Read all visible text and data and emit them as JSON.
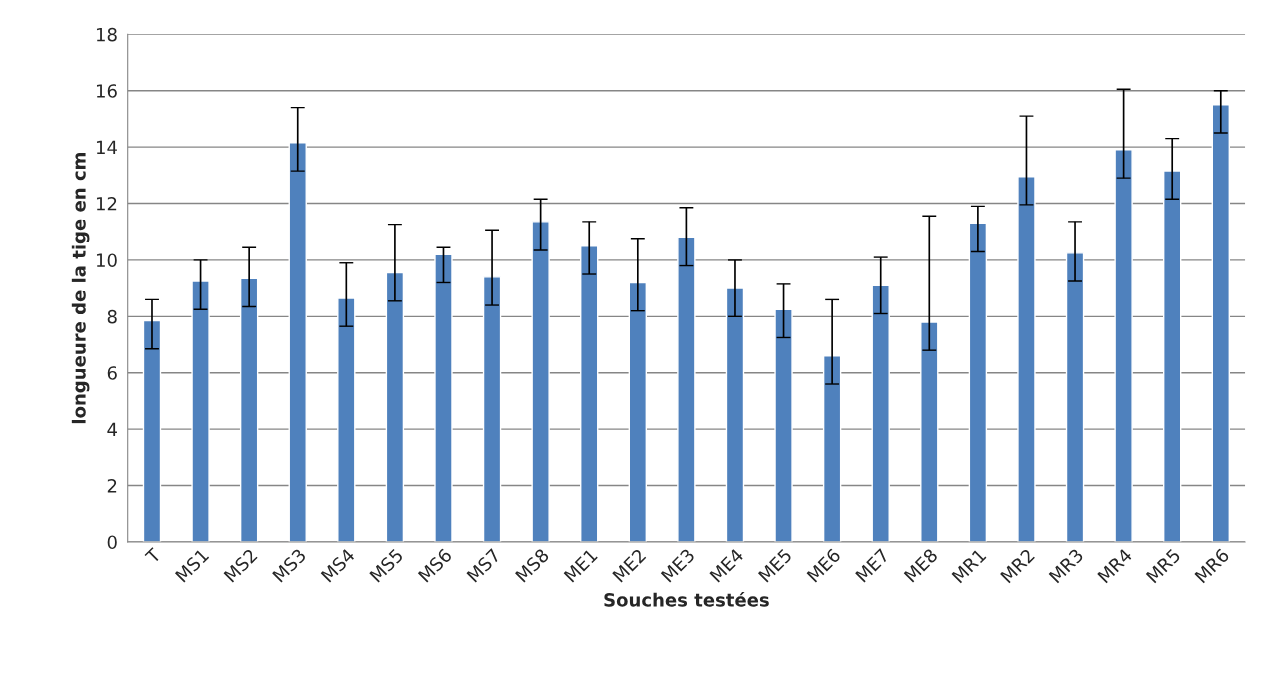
{
  "chart_data": {
    "type": "bar",
    "xlabel": "Souches testées",
    "ylabel": "longueure de la tige en cm",
    "categories": [
      "T",
      "MS1",
      "MS2",
      "MS3",
      "MS4",
      "MS5",
      "MS6",
      "MS7",
      "MS8",
      "ME1",
      "ME2",
      "ME3",
      "ME4",
      "ME5",
      "ME6",
      "ME7",
      "ME8",
      "MR1",
      "MR2",
      "MR3",
      "MR4",
      "MR5",
      "MR6"
    ],
    "series": [
      {
        "color": "#4f81bd",
        "values": [
          7.85,
          9.25,
          9.35,
          14.15,
          8.65,
          9.55,
          10.2,
          9.4,
          11.35,
          10.5,
          9.2,
          10.8,
          9.0,
          8.25,
          6.6,
          9.1,
          7.8,
          11.3,
          12.95,
          10.25,
          13.9,
          13.15,
          15.5
        ],
        "errors": [
          [
            6.85,
            8.6
          ],
          [
            8.25,
            10.0
          ],
          [
            8.35,
            10.45
          ],
          [
            13.15,
            15.4
          ],
          [
            7.65,
            9.9
          ],
          [
            8.55,
            11.25
          ],
          [
            9.2,
            10.45
          ],
          [
            8.4,
            11.05
          ],
          [
            10.35,
            12.15
          ],
          [
            9.5,
            11.35
          ],
          [
            8.2,
            10.75
          ],
          [
            9.8,
            11.85
          ],
          [
            8.0,
            10.0
          ],
          [
            7.25,
            9.15
          ],
          [
            5.6,
            8.6
          ],
          [
            8.1,
            10.1
          ],
          [
            6.8,
            11.55
          ],
          [
            10.3,
            11.9
          ],
          [
            11.95,
            15.1
          ],
          [
            9.25,
            11.35
          ],
          [
            12.9,
            16.05
          ],
          [
            12.15,
            14.3
          ],
          [
            14.5,
            16.0
          ]
        ]
      }
    ],
    "ylim": [
      0,
      18
    ],
    "yticks": [
      0,
      2,
      4,
      6,
      8,
      10,
      12,
      14,
      16,
      18
    ],
    "grid": "y",
    "legend": false
  }
}
